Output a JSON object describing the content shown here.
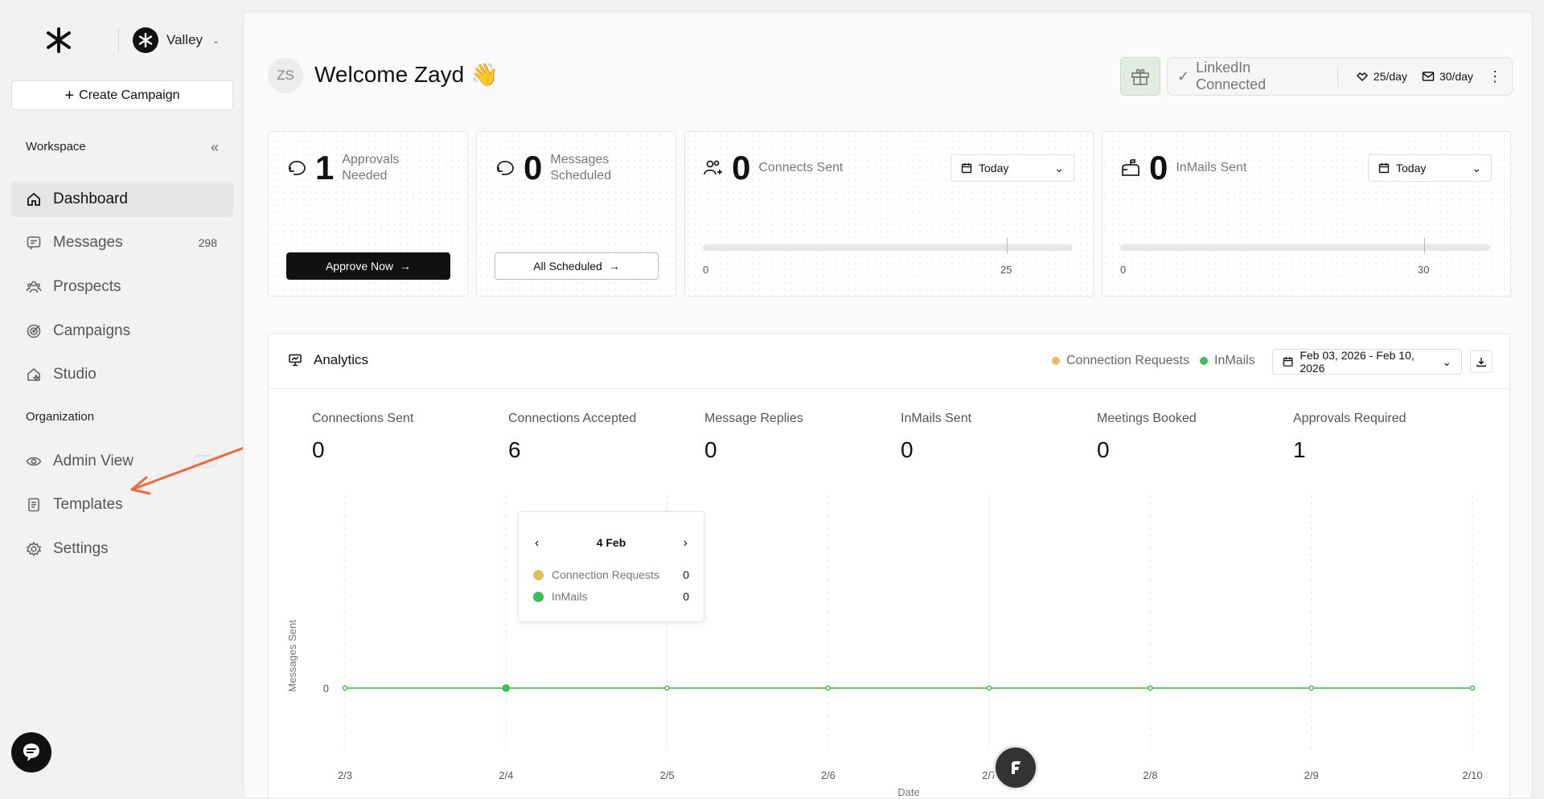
{
  "sidebar": {
    "workspace_name": "Valley",
    "create_campaign": "Create Campaign",
    "workspace_section": "Workspace",
    "organization_section": "Organization",
    "items": [
      {
        "label": "Dashboard",
        "icon": "home-icon",
        "active": true
      },
      {
        "label": "Messages",
        "icon": "message-icon",
        "count": "298"
      },
      {
        "label": "Prospects",
        "icon": "people-icon"
      },
      {
        "label": "Campaigns",
        "icon": "target-icon"
      },
      {
        "label": "Studio",
        "icon": "studio-icon"
      }
    ],
    "org_items": [
      {
        "label": "Admin View",
        "icon": "eye-icon"
      },
      {
        "label": "Templates",
        "icon": "document-icon"
      },
      {
        "label": "Settings",
        "icon": "gear-icon"
      }
    ]
  },
  "header": {
    "avatar_initials": "ZS",
    "title": "Welcome Zayd 👋",
    "linkedin_status": "LinkedIn Connected",
    "connects_limit": "25/day",
    "inmails_limit": "30/day"
  },
  "cards": {
    "approvals": {
      "value": "1",
      "label": "Approvals Needed",
      "button": "Approve Now"
    },
    "scheduled": {
      "value": "0",
      "label": "Messages Scheduled",
      "button": "All Scheduled"
    },
    "connects": {
      "value": "0",
      "label": "Connects Sent",
      "range": "Today",
      "min": "0",
      "max": "25"
    },
    "inmails": {
      "value": "0",
      "label": "InMails Sent",
      "range": "Today",
      "min": "0",
      "max": "30"
    }
  },
  "analytics": {
    "title": "Analytics",
    "legend": [
      "Connection Requests",
      "InMails"
    ],
    "date_range": "Feb 03, 2026 - Feb 10, 2026",
    "kpis": [
      {
        "label": "Connections Sent",
        "value": "0"
      },
      {
        "label": "Connections Accepted",
        "value": "6"
      },
      {
        "label": "Message Replies",
        "value": "0"
      },
      {
        "label": "InMails Sent",
        "value": "0"
      },
      {
        "label": "Meetings Booked",
        "value": "0"
      },
      {
        "label": "Approvals Required",
        "value": "1"
      }
    ],
    "tooltip": {
      "date": "4 Feb",
      "rows": [
        {
          "label": "Connection Requests",
          "value": "0"
        },
        {
          "label": "InMails",
          "value": "0"
        }
      ]
    }
  },
  "colors": {
    "connection_requests": "#e2bf5e",
    "inmails": "#3cbe5a"
  },
  "chart_data": {
    "type": "line",
    "x": [
      "2/3",
      "2/4",
      "2/5",
      "2/6",
      "2/7",
      "2/8",
      "2/9",
      "2/10"
    ],
    "series": [
      {
        "name": "Connection Requests",
        "values": [
          0,
          0,
          0,
          0,
          0,
          0,
          0,
          0
        ]
      },
      {
        "name": "InMails",
        "values": [
          0,
          0,
          0,
          0,
          0,
          0,
          0,
          0
        ]
      }
    ],
    "xlabel": "Date",
    "ylabel": "Messages Sent",
    "yticks": [
      "0"
    ]
  }
}
